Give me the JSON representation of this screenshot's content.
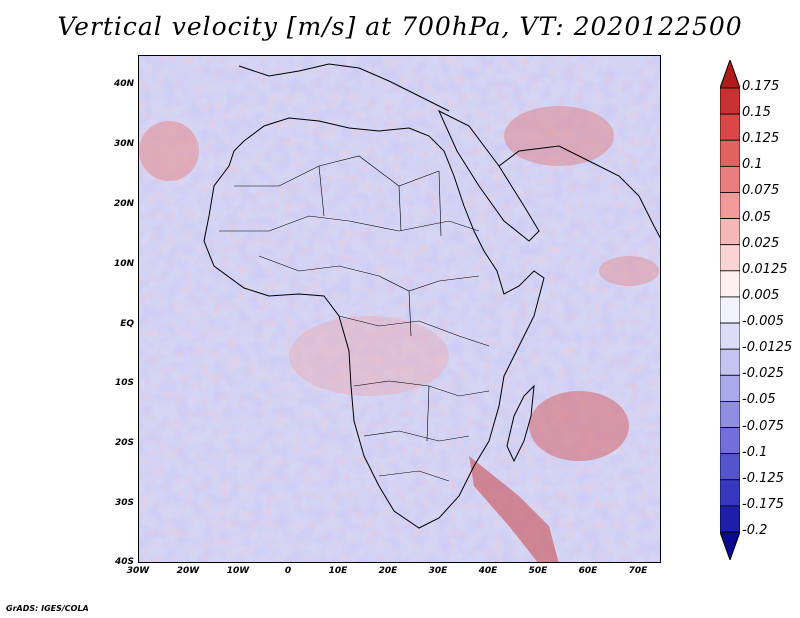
{
  "title": "Vertical velocity [m/s] at 700hPa, VT: 2020122500",
  "footer": "GrADS: IGES/COLA",
  "axes": {
    "lat_labels": [
      "40N",
      "30N",
      "20N",
      "10N",
      "EQ",
      "10S",
      "20S",
      "30S",
      "40S"
    ],
    "lon_labels": [
      "30W",
      "20W",
      "10W",
      "0",
      "10E",
      "20E",
      "30E",
      "40E",
      "50E",
      "60E",
      "70E"
    ]
  },
  "colorbar": {
    "levels": [
      "0.175",
      "0.15",
      "0.125",
      "0.1",
      "0.075",
      "0.05",
      "0.025",
      "0.0125",
      "0.005",
      "-0.005",
      "-0.0125",
      "-0.025",
      "-0.05",
      "-0.075",
      "-0.1",
      "-0.125",
      "-0.175",
      "-0.2"
    ],
    "colors": [
      "#b01c1c",
      "#c83232",
      "#d84848",
      "#e26262",
      "#ea7e7e",
      "#f09a9a",
      "#f5b8b8",
      "#f9d4d4",
      "#fdf0f0",
      "#f2f2fc",
      "#dcdcf6",
      "#c4c4f0",
      "#aaaaea",
      "#8e8ee2",
      "#7070d8",
      "#5454cc",
      "#3838be",
      "#1e1ea8",
      "#0a0a90"
    ]
  }
}
